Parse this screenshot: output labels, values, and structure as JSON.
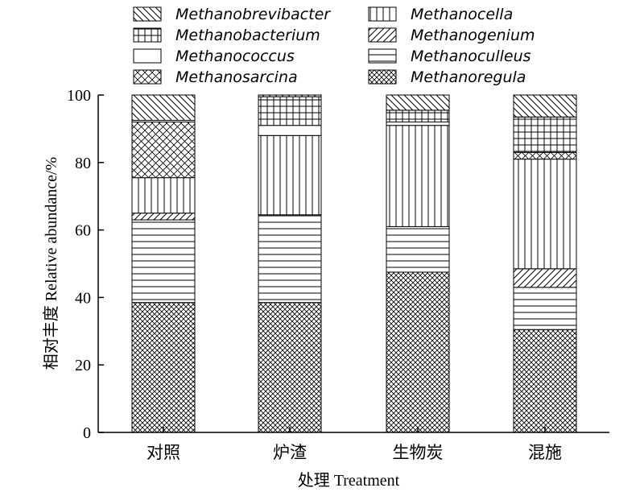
{
  "chart_data": {
    "type": "bar",
    "stacked": true,
    "xlabel": "处理 Treatment",
    "ylabel": "相对丰度 Relative abundance/%",
    "ylim": [
      0,
      100
    ],
    "yticks": [
      "0",
      "20",
      "40",
      "60",
      "80",
      "100"
    ],
    "categories": [
      "对照",
      "炉渣",
      "生物炭",
      "混施"
    ],
    "legend_placement": "top",
    "series": [
      {
        "name": "Methanoregula",
        "pattern": "crosshatch",
        "values": [
          38.5,
          38.5,
          47.5,
          30.5
        ]
      },
      {
        "name": "Methanoculleus",
        "pattern": "horizontal",
        "values": [
          24.5,
          26.0,
          13.5,
          12.5
        ]
      },
      {
        "name": "Methanogenium",
        "pattern": "diag-forward",
        "values": [
          2.0,
          0,
          0,
          5.5
        ]
      },
      {
        "name": "Methanocella",
        "pattern": "vertical",
        "values": [
          10.5,
          23.5,
          30.0,
          32.5
        ]
      },
      {
        "name": "Methanosarcina",
        "pattern": "diag-cross",
        "values": [
          16.5,
          0,
          0,
          2.0
        ]
      },
      {
        "name": "Methanococcus",
        "pattern": "empty",
        "values": [
          0.5,
          3.0,
          1.0,
          0
        ]
      },
      {
        "name": "Methanobacterium",
        "pattern": "grid",
        "values": [
          0,
          8.5,
          3.5,
          10.5
        ]
      },
      {
        "name": "Methanobrevibacter",
        "pattern": "diag-backward",
        "values": [
          7.5,
          0.5,
          4.5,
          6.5
        ]
      }
    ]
  }
}
